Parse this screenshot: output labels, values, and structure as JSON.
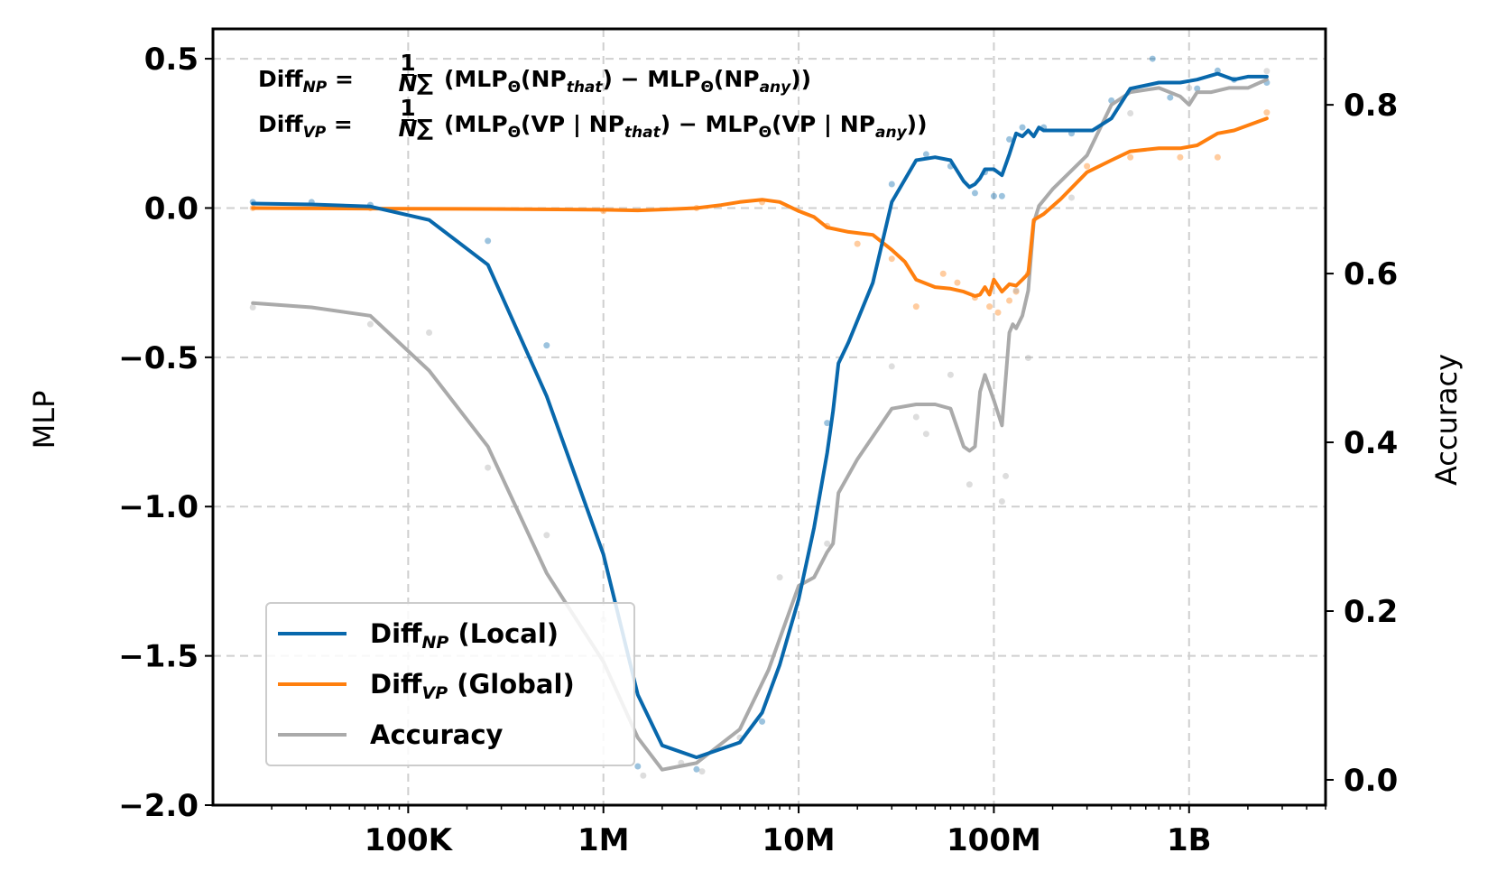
{
  "chart_data": {
    "type": "line",
    "xscale": "log",
    "xlim": [
      10000,
      5000000000
    ],
    "ylim": [
      -2.0,
      0.6
    ],
    "y2lim": [
      -0.03,
      0.89
    ],
    "ylabel": "MLP",
    "y2label": "Accuracy",
    "grid": true,
    "legend_position": "lower-left",
    "x_ticks": [
      {
        "value": 100000,
        "label": "100K"
      },
      {
        "value": 1000000,
        "label": "1M"
      },
      {
        "value": 10000000,
        "label": "10M"
      },
      {
        "value": 100000000,
        "label": "100M"
      },
      {
        "value": 1000000000,
        "label": "1B"
      }
    ],
    "y_ticks": [
      {
        "value": 0.5,
        "label": "0.5"
      },
      {
        "value": 0.0,
        "label": "0.0"
      },
      {
        "value": -0.5,
        "label": "−0.5"
      },
      {
        "value": -1.0,
        "label": "−1.0"
      },
      {
        "value": -1.5,
        "label": "−1.5"
      },
      {
        "value": -2.0,
        "label": "−2.0"
      }
    ],
    "y2_ticks": [
      {
        "value": 0.8,
        "label": "0.8"
      },
      {
        "value": 0.6,
        "label": "0.6"
      },
      {
        "value": 0.4,
        "label": "0.4"
      },
      {
        "value": 0.2,
        "label": "0.2"
      },
      {
        "value": 0.0,
        "label": "0.0"
      }
    ],
    "annotations": {
      "line1": {
        "lhs_base": "Diff",
        "lhs_sub": "NP",
        "frac_num": "1",
        "frac_den": "N",
        "sum": "∑",
        "body_a": "(MLP",
        "theta": "Θ",
        "body_b": "(NP",
        "sub_a": "that",
        "body_c": ") − MLP",
        "body_d": "(NP",
        "sub_b": "any",
        "body_e": "))"
      },
      "line2": {
        "lhs_base": "Diff",
        "lhs_sub": "VP",
        "frac_num": "1",
        "frac_den": "N",
        "sum": "∑",
        "body_a": "(MLP",
        "theta": "Θ",
        "body_b": "(VP | NP",
        "sub_a": "that",
        "body_c": ") − MLP",
        "body_d": "(VP | NP",
        "sub_b": "any",
        "body_e": "))"
      }
    },
    "legend": [
      {
        "base": "Diff",
        "sub": "NP",
        "suffix": " (Local)",
        "series": "diff_np"
      },
      {
        "base": "Diff",
        "sub": "VP",
        "suffix": " (Global)",
        "series": "diff_vp"
      },
      {
        "base": "Accuracy",
        "sub": "",
        "suffix": "",
        "series": "accuracy"
      }
    ],
    "series": [
      {
        "key": "diff_np",
        "axis": "left",
        "color": "#0868ac",
        "x": [
          16000,
          32000,
          64000,
          128000,
          256000,
          512000,
          1000000,
          1500000,
          2000000,
          3000000,
          5000000,
          6500000,
          8000000,
          10000000,
          12000000,
          14000000,
          15000000,
          16000000,
          18000000,
          24000000,
          30000000,
          40000000,
          50000000,
          60000000,
          70000000,
          75000000,
          80000000,
          85000000,
          90000000,
          100000000,
          110000000,
          120000000,
          130000000,
          140000000,
          150000000,
          160000000,
          170000000,
          180000000,
          200000000,
          250000000,
          320000000,
          400000000,
          500000000,
          700000000,
          900000000,
          1100000000,
          1400000000,
          1700000000,
          2000000000,
          2500000000
        ],
        "values": [
          0.015,
          0.012,
          0.005,
          -0.04,
          -0.19,
          -0.63,
          -1.16,
          -1.63,
          -1.8,
          -1.84,
          -1.79,
          -1.69,
          -1.53,
          -1.31,
          -1.07,
          -0.82,
          -0.68,
          -0.52,
          -0.45,
          -0.25,
          0.02,
          0.16,
          0.17,
          0.16,
          0.09,
          0.07,
          0.08,
          0.1,
          0.13,
          0.13,
          0.11,
          0.18,
          0.25,
          0.24,
          0.26,
          0.24,
          0.27,
          0.26,
          0.26,
          0.26,
          0.26,
          0.3,
          0.4,
          0.42,
          0.42,
          0.43,
          0.45,
          0.43,
          0.44,
          0.44
        ]
      },
      {
        "key": "diff_vp",
        "axis": "left",
        "color": "#ff7f0e",
        "x": [
          16000,
          64000,
          256000,
          1000000,
          1500000,
          2000000,
          3000000,
          4000000,
          5000000,
          6500000,
          8000000,
          10000000,
          12000000,
          14000000,
          18000000,
          24000000,
          30000000,
          35000000,
          40000000,
          50000000,
          60000000,
          70000000,
          80000000,
          85000000,
          90000000,
          95000000,
          100000000,
          110000000,
          120000000,
          130000000,
          140000000,
          150000000,
          160000000,
          180000000,
          220000000,
          300000000,
          400000000,
          500000000,
          700000000,
          900000000,
          1100000000,
          1400000000,
          1700000000,
          2500000000
        ],
        "values": [
          0.0,
          -0.002,
          -0.003,
          -0.006,
          -0.008,
          -0.005,
          0.0,
          0.01,
          0.02,
          0.028,
          0.02,
          -0.01,
          -0.03,
          -0.065,
          -0.08,
          -0.09,
          -0.14,
          -0.18,
          -0.24,
          -0.265,
          -0.27,
          -0.28,
          -0.295,
          -0.29,
          -0.265,
          -0.29,
          -0.24,
          -0.28,
          -0.255,
          -0.26,
          -0.24,
          -0.22,
          -0.04,
          -0.02,
          0.03,
          0.12,
          0.16,
          0.19,
          0.2,
          0.2,
          0.21,
          0.25,
          0.26,
          0.3
        ]
      },
      {
        "key": "accuracy",
        "axis": "right",
        "color": "#aaaaaa",
        "x": [
          16000,
          32000,
          64000,
          128000,
          256000,
          512000,
          1000000,
          1500000,
          2000000,
          3000000,
          5000000,
          7000000,
          10000000,
          12000000,
          14000000,
          15000000,
          16000000,
          20000000,
          30000000,
          40000000,
          45000000,
          50000000,
          60000000,
          70000000,
          75000000,
          80000000,
          85000000,
          90000000,
          100000000,
          110000000,
          120000000,
          125000000,
          130000000,
          140000000,
          150000000,
          160000000,
          170000000,
          200000000,
          300000000,
          400000000,
          500000000,
          700000000,
          900000000,
          1000000000,
          1100000000,
          1300000000,
          1600000000,
          2000000000,
          2500000000
        ],
        "values": [
          0.565,
          0.56,
          0.55,
          0.485,
          0.395,
          0.245,
          0.14,
          0.05,
          0.012,
          0.02,
          0.06,
          0.13,
          0.23,
          0.24,
          0.27,
          0.28,
          0.34,
          0.38,
          0.44,
          0.445,
          0.445,
          0.445,
          0.44,
          0.395,
          0.39,
          0.395,
          0.46,
          0.48,
          0.45,
          0.42,
          0.53,
          0.54,
          0.535,
          0.55,
          0.58,
          0.66,
          0.68,
          0.7,
          0.74,
          0.8,
          0.815,
          0.82,
          0.81,
          0.8,
          0.815,
          0.815,
          0.82,
          0.82,
          0.83
        ]
      }
    ],
    "scatter": [
      {
        "series": "diff_np",
        "axis": "left",
        "color": "#0868ac",
        "x": [
          16000,
          32000,
          64000,
          256000,
          512000,
          1500000,
          3000000,
          6500000,
          14000000,
          30000000,
          45000000,
          60000000,
          80000000,
          90000000,
          100000000,
          110000000,
          120000000,
          140000000,
          180000000,
          250000000,
          400000000,
          650000000,
          800000000,
          1100000000,
          1400000000,
          1700000000,
          2500000000
        ],
        "values": [
          0.02,
          0.02,
          0.01,
          -0.11,
          -0.46,
          -1.87,
          -1.88,
          -1.72,
          -0.72,
          0.08,
          0.18,
          0.14,
          0.05,
          0.12,
          0.04,
          0.04,
          0.23,
          0.27,
          0.27,
          0.25,
          0.36,
          0.5,
          0.37,
          0.4,
          0.46,
          0.43,
          0.42
        ]
      },
      {
        "series": "diff_vp",
        "axis": "left",
        "color": "#ff7f0e",
        "x": [
          16000,
          64000,
          1000000,
          3000000,
          6500000,
          14000000,
          20000000,
          30000000,
          40000000,
          55000000,
          65000000,
          80000000,
          95000000,
          105000000,
          120000000,
          130000000,
          150000000,
          300000000,
          500000000,
          900000000,
          1400000000,
          2500000000
        ],
        "values": [
          0.0,
          0.0,
          -0.01,
          0.0,
          0.02,
          -0.06,
          -0.12,
          -0.17,
          -0.33,
          -0.22,
          -0.25,
          -0.3,
          -0.33,
          -0.35,
          -0.31,
          -0.28,
          -0.22,
          0.14,
          0.17,
          0.17,
          0.17,
          0.32
        ]
      },
      {
        "series": "accuracy",
        "axis": "right",
        "color": "#aaaaaa",
        "x": [
          16000,
          64000,
          128000,
          256000,
          512000,
          1000000,
          1600000,
          2500000,
          3200000,
          5000000,
          8000000,
          14000000,
          30000000,
          40000000,
          45000000,
          60000000,
          75000000,
          110000000,
          115000000,
          130000000,
          150000000,
          250000000,
          500000000,
          1000000000,
          2500000000
        ],
        "values": [
          0.56,
          0.54,
          0.53,
          0.37,
          0.29,
          0.19,
          0.005,
          0.02,
          0.01,
          0.05,
          0.24,
          0.28,
          0.49,
          0.43,
          0.41,
          0.48,
          0.35,
          0.33,
          0.36,
          0.58,
          0.5,
          0.69,
          0.79,
          0.82,
          0.84
        ]
      }
    ]
  }
}
